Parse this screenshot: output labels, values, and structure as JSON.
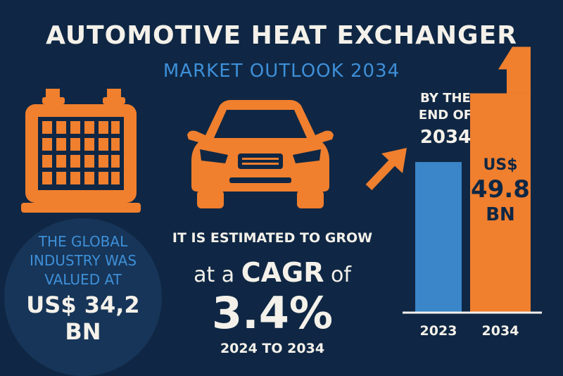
{
  "title": "AUTOMOTIVE HEAT EXCHANGER",
  "subtitle": "MARKET OUTLOOK 2034",
  "global": {
    "text": "THE GLOBAL INDUSTRY WAS VALUED AT",
    "value": "US$ 34,2 BN"
  },
  "growth": {
    "estimated": "IT IS ESTIMATED TO GROW",
    "cagr_prefix": "at a",
    "cagr_word": "CAGR",
    "cagr_suffix": "of",
    "cagr_value": "3.4%",
    "period": "2024 TO 2034"
  },
  "forecast": {
    "by_the": "BY THE END OF",
    "year": "2034",
    "bar_label_line1": "US$",
    "bar_label_line2": "49.8",
    "bar_label_line3": "BN"
  },
  "icons": [
    "heat-exchanger-icon",
    "car-icon",
    "arrow-up-right-icon"
  ],
  "colors": {
    "background": "#0f2744",
    "orange": "#f07f2e",
    "blue": "#3a86c8",
    "text": "#f4f1ea"
  },
  "chart_data": {
    "type": "bar",
    "categories": [
      "2023",
      "2034"
    ],
    "values": [
      34.2,
      49.8
    ],
    "ylim": [
      0,
      55
    ],
    "colors": [
      "#3a86c8",
      "#f07f2e"
    ],
    "grid": false,
    "legend": "none"
  }
}
